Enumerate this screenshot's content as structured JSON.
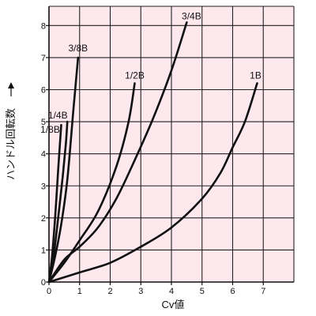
{
  "chart_data": {
    "type": "line",
    "title": "",
    "xlabel": "Cv値",
    "ylabel": "ハンドル回転数",
    "xlim": [
      0,
      8
    ],
    "ylim": [
      0,
      8.6
    ],
    "x_ticks": [
      "0",
      "1",
      "2",
      "3",
      "4",
      "5",
      "6",
      "7"
    ],
    "y_ticks": [
      "0",
      "1",
      "2",
      "3",
      "4",
      "5",
      "6",
      "7",
      "8"
    ],
    "grid": true,
    "background_color": "#fde8ee",
    "line_color": "#111111",
    "series": [
      {
        "name": "1/8B",
        "x": [
          0,
          0.1,
          0.2,
          0.3,
          0.35,
          0.4
        ],
        "y": [
          0,
          0.8,
          2.0,
          3.5,
          4.2,
          4.9
        ]
      },
      {
        "name": "1/4B",
        "x": [
          0,
          0.15,
          0.3,
          0.45,
          0.55,
          0.6
        ],
        "y": [
          0,
          0.8,
          2.0,
          3.3,
          4.3,
          5.0
        ]
      },
      {
        "name": "3/8B",
        "x": [
          0,
          0.2,
          0.4,
          0.6,
          0.8,
          0.95
        ],
        "y": [
          0,
          0.8,
          1.8,
          3.2,
          5.4,
          7.0
        ]
      },
      {
        "name": "1/2B",
        "x": [
          0,
          0.5,
          1.0,
          1.6,
          2.2,
          2.6,
          2.8
        ],
        "y": [
          0,
          0.6,
          1.3,
          2.2,
          3.6,
          5.0,
          6.2
        ]
      },
      {
        "name": "3/4B",
        "x": [
          0,
          0.5,
          1.0,
          1.6,
          2.2,
          2.8,
          3.4,
          4.0,
          4.5
        ],
        "y": [
          0,
          0.7,
          1.1,
          1.7,
          2.6,
          3.8,
          5.1,
          6.6,
          8.1
        ]
      },
      {
        "name": "1B",
        "x": [
          0,
          1.0,
          2.0,
          3.0,
          4.0,
          5.0,
          5.6,
          6.0,
          6.4,
          6.8
        ],
        "y": [
          0,
          0.3,
          0.6,
          1.1,
          1.7,
          2.6,
          3.4,
          4.2,
          5.0,
          6.2
        ]
      }
    ]
  }
}
